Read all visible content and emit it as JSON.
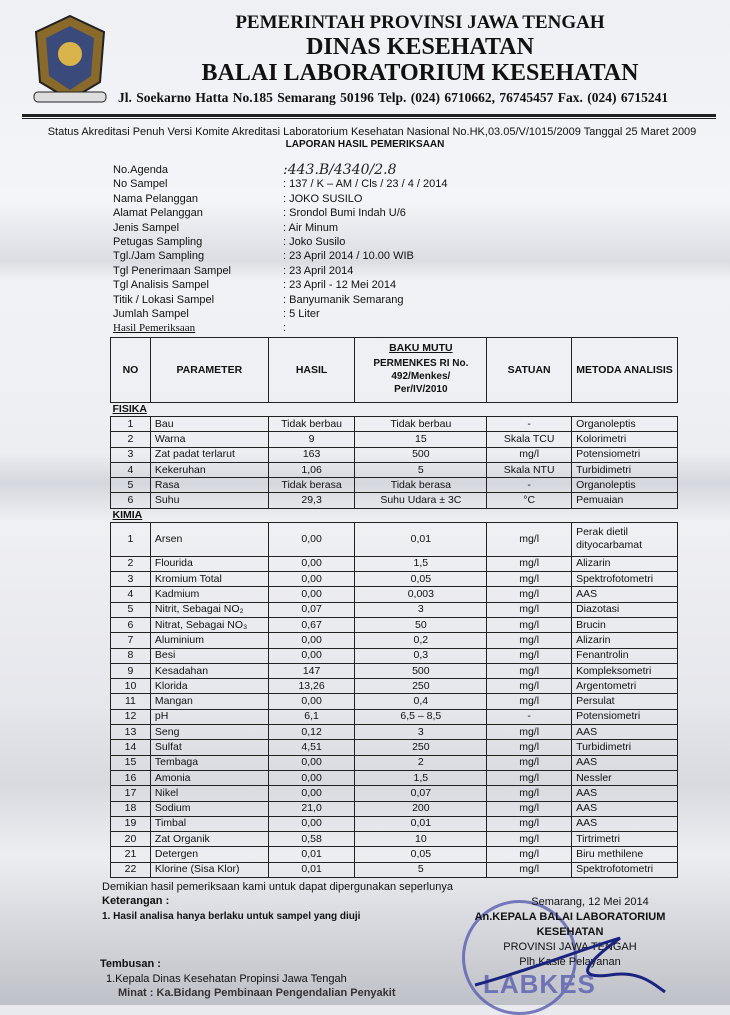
{
  "header": {
    "line1": "PEMERINTAH PROVINSI JAWA TENGAH",
    "line2": "DINAS KESEHATAN",
    "line3": "BALAI LABORATORIUM KESEHATAN",
    "address": "Jl. Soekarno Hatta No.185 Semarang 50196 Telp. (024) 6710662, 76745457  Fax. (024) 6715241"
  },
  "accreditation": "Status Akreditasi Penuh Versi Komite Akreditasi Laboratorium Kesehatan Nasional No.HK,03.05/V/1015/2009 Tanggal 25 Maret 2009",
  "report_title": "LAPORAN HASIL PEMERIKSAAN",
  "meta": [
    {
      "k": "No.Agenda",
      "v": ":443.B/4340/2.8"
    },
    {
      "k": "No Sampel",
      "v": ": 137 / K – AM / Cls / 23 / 4 / 2014"
    },
    {
      "k": "Nama Pelanggan",
      "v": ": JOKO SUSILO"
    },
    {
      "k": "Alamat Pelanggan",
      "v": ": Srondol Bumi Indah U/6"
    },
    {
      "k": "Jenis Sampel",
      "v": ": Air Minum"
    },
    {
      "k": "Petugas Sampling",
      "v": ": Joko Susilo"
    },
    {
      "k": "Tgl./Jam Sampling",
      "v": ": 23 April 2014 / 10.00 WIB"
    },
    {
      "k": "Tgl Penerimaan Sampel",
      "v": ": 23 April 2014"
    },
    {
      "k": "Tgl Analisis Sampel",
      "v": ": 23 April  - 12 Mei 2014"
    },
    {
      "k": "Titik / Lokasi Sampel",
      "v": ": Banyumanik  Semarang"
    },
    {
      "k": "Jumlah Sampel",
      "v": ": 5 Liter"
    },
    {
      "k": "Hasil Pemeriksaan",
      "v": ":"
    }
  ],
  "table": {
    "headers": {
      "no": "NO",
      "param": "PARAMETER",
      "hasil": "HASIL",
      "baku_title": "BAKU MUTU",
      "baku_sub": "PERMENKES RI No. 492/Menkes/ Per/IV/2010",
      "satuan": "SATUAN",
      "metoda": "METODA ANALISIS"
    },
    "sections": [
      {
        "name": "FISIKA",
        "rows": [
          [
            "1",
            "Bau",
            "Tidak berbau",
            "Tidak berbau",
            "-",
            "Organoleptis"
          ],
          [
            "2",
            "Warna",
            "9",
            "15",
            "Skala TCU",
            "Kolorimetri"
          ],
          [
            "3",
            "Zat padat terlarut",
            "163",
            "500",
            "mg/l",
            "Potensiometri"
          ],
          [
            "4",
            "Kekeruhan",
            "1,06",
            "5",
            "Skala NTU",
            "Turbidimetri"
          ],
          [
            "5",
            "Rasa",
            "Tidak berasa",
            "Tidak berasa",
            "-",
            "Organoleptis"
          ],
          [
            "6",
            "Suhu",
            "29,3",
            "Suhu Udara ± 3C",
            "°C",
            "Pemuaian"
          ]
        ]
      },
      {
        "name": "KIMIA",
        "rows": [
          [
            "1",
            "Arsen",
            "0,00",
            "0,01",
            "mg/l",
            "Perak dietil dityocarbamat"
          ],
          [
            "2",
            "Flourida",
            "0,00",
            "1,5",
            "mg/l",
            "Alizarin"
          ],
          [
            "3",
            "Kromium Total",
            "0,00",
            "0,05",
            "mg/l",
            "Spektrofotometri"
          ],
          [
            "4",
            "Kadmium",
            "0,00",
            "0,003",
            "mg/l",
            "AAS"
          ],
          [
            "5",
            "Nitrit, Sebagai NO₂",
            "0,07",
            "3",
            "mg/l",
            "Diazotasi"
          ],
          [
            "6",
            "Nitrat, Sebagai NO₃",
            "0,67",
            "50",
            "mg/l",
            "Brucin"
          ],
          [
            "7",
            "Aluminium",
            "0,00",
            "0,2",
            "mg/l",
            "Alizarin"
          ],
          [
            "8",
            "Besi",
            "0,00",
            "0,3",
            "mg/l",
            "Fenantrolin"
          ],
          [
            "9",
            "Kesadahan",
            "147",
            "500",
            "mg/l",
            "Kompleksometri"
          ],
          [
            "10",
            "Klorida",
            "13,26",
            "250",
            "mg/l",
            "Argentometri"
          ],
          [
            "11",
            "Mangan",
            "0,00",
            "0,4",
            "mg/l",
            "Persulat"
          ],
          [
            "12",
            "pH",
            "6,1",
            "6,5 – 8,5",
            "-",
            "Potensiometri"
          ],
          [
            "13",
            "Seng",
            "0,12",
            "3",
            "mg/l",
            "AAS"
          ],
          [
            "14",
            "Sulfat",
            "4,51",
            "250",
            "mg/l",
            "Turbidimetri"
          ],
          [
            "15",
            "Tembaga",
            "0,00",
            "2",
            "mg/l",
            "AAS"
          ],
          [
            "16",
            "Amonia",
            "0,00",
            "1,5",
            "mg/l",
            "Nessler"
          ],
          [
            "17",
            "Nikel",
            "0,00",
            "0,07",
            "mg/l",
            "AAS"
          ],
          [
            "18",
            "Sodium",
            "21,0",
            "200",
            "mg/l",
            "AAS"
          ],
          [
            "19",
            "Timbal",
            "0,00",
            "0,01",
            "mg/l",
            "AAS"
          ],
          [
            "20",
            "Zat Organik",
            "0,58",
            "10",
            "mg/l",
            "Tirtrimetri"
          ],
          [
            "21",
            "Detergen",
            "0,01",
            "0,05",
            "mg/l",
            "Biru methilene"
          ],
          [
            "22",
            "Klorine (Sisa Klor)",
            "0,01",
            "5",
            "mg/l",
            "Spektrofotometri"
          ]
        ]
      }
    ]
  },
  "footer": {
    "statement": "Demikian hasil pemeriksaan kami untuk dapat dipergunakan seperlunya",
    "keterangan": "Keterangan :",
    "note": "1.    Hasil analisa hanya berlaku untuk sampel yang diuji",
    "tembusan": "Tembusan :",
    "tembusan_1": "1.Kepala Dinas Kesehatan Propinsi Jawa Tengah",
    "minat": "Minat : Ka.Bidang Pembinaan Pengendalian Penyakit"
  },
  "signature": {
    "place_date": "Semarang, 12 Mei 2014",
    "line1": "An.KEPALA BALAI LABORATORIUM KESEHATAN",
    "line2": "PROVINSI JAWA TENGAH",
    "line3": "Plh.Kasie Pelayanan"
  },
  "stamp_text": "LABKES"
}
